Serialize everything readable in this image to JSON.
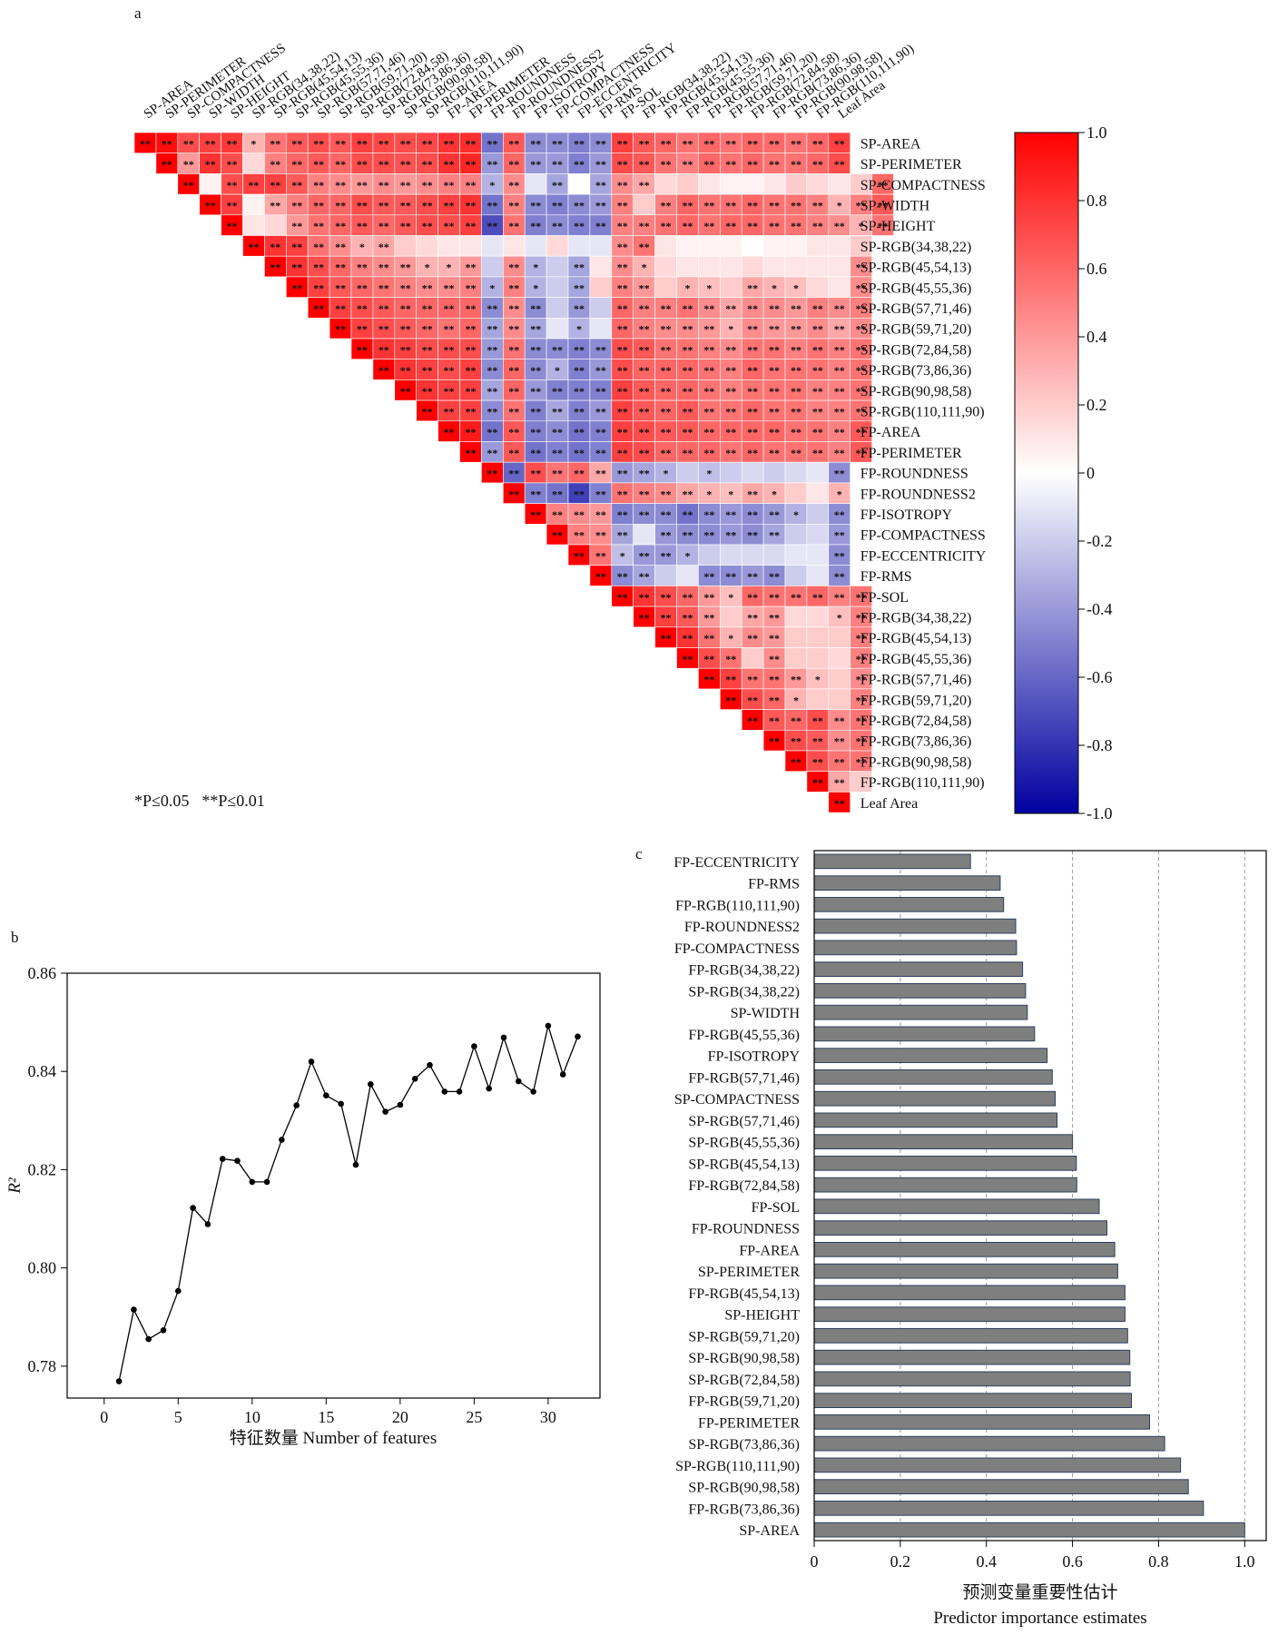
{
  "panel_labels": {
    "a": "a",
    "b": "b",
    "c": "c"
  },
  "significance_note": {
    "single": "*P≤0.05",
    "double": "**P≤0.01"
  },
  "chart_data": [
    {
      "type": "heatmap",
      "panel": "a",
      "variables": [
        "SP-AREA",
        "SP-PERIMETER",
        "SP-COMPACTNESS",
        "SP-WIDTH",
        "SP-HEIGHT",
        "SP-RGB(34,38,22)",
        "SP-RGB(45,54,13)",
        "SP-RGB(45,55,36)",
        "SP-RGB(57,71,46)",
        "SP-RGB(59,71,20)",
        "SP-RGB(72,84,58)",
        "SP-RGB(73,86,36)",
        "SP-RGB(90,98,58)",
        "SP-RGB(110,111,90)",
        "FP-AREA",
        "FP-PERIMETER",
        "FP-ROUNDNESS",
        "FP-ROUNDNESS2",
        "FP-ISOTROPY",
        "FP-COMPACTNESS",
        "FP-ECCENTRICITY",
        "FP-RMS",
        "FP-SOL",
        "FP-RGB(34,38,22)",
        "FP-RGB(45,54,13)",
        "FP-RGB(45,55,36)",
        "FP-RGB(57,71,46)",
        "FP-RGB(59,71,20)",
        "FP-RGB(72,84,58)",
        "FP-RGB(73,86,36)",
        "FP-RGB(90,98,58)",
        "FP-RGB(110,111,90)",
        "Leaf Area"
      ],
      "layout": "upper-triangle",
      "colorbar": {
        "min": -1.0,
        "max": 1.0,
        "ticks": [
          "1.0",
          "0.8",
          "0.6",
          "0.4",
          "0.2",
          "0",
          "-0.2",
          "-0.4",
          "-0.6",
          "-0.8",
          "-1.0"
        ],
        "colors": {
          "low": "#0000a0",
          "mid": "#ffffff",
          "high": "#ff0000"
        }
      },
      "significance_symbols": [
        "*",
        "**"
      ],
      "matrix_rows": [
        [
          1.0,
          0.95,
          0.7,
          0.75,
          0.78,
          0.3,
          0.55,
          0.65,
          0.7,
          0.65,
          0.75,
          0.72,
          0.7,
          0.72,
          0.8,
          0.82,
          -0.55,
          0.65,
          -0.45,
          -0.45,
          -0.5,
          -0.45,
          0.75,
          0.65,
          0.6,
          0.55,
          0.6,
          0.55,
          0.6,
          0.58,
          0.55,
          0.6,
          0.75
        ],
        [
          1.0,
          0.4,
          0.8,
          0.7,
          0.15,
          0.5,
          0.6,
          0.65,
          0.6,
          0.7,
          0.7,
          0.68,
          0.7,
          0.8,
          0.85,
          -0.4,
          0.6,
          -0.4,
          -0.4,
          -0.5,
          -0.4,
          0.7,
          0.65,
          0.55,
          0.5,
          0.6,
          0.55,
          0.6,
          0.55,
          0.55,
          0.6,
          0.7
        ],
        [
          1.0,
          0.05,
          0.7,
          0.75,
          0.75,
          0.65,
          0.5,
          0.45,
          0.4,
          0.45,
          0.4,
          0.45,
          0.5,
          0.5,
          -0.3,
          0.45,
          -0.1,
          -0.35,
          0.0,
          -0.35,
          0.45,
          0.35,
          0.15,
          0.2,
          0.1,
          0.05,
          0.05,
          0.1,
          0.2,
          0.15,
          0.1,
          0.2,
          0.6
        ],
        [
          1.0,
          0.75,
          0.05,
          0.35,
          0.5,
          0.6,
          0.6,
          0.7,
          0.65,
          0.65,
          0.7,
          0.75,
          0.8,
          -0.55,
          0.5,
          -0.45,
          -0.5,
          -0.45,
          -0.4,
          0.5,
          0.2,
          0.5,
          0.6,
          0.55,
          0.55,
          0.6,
          0.55,
          0.55,
          0.5,
          0.3,
          0.5,
          0.65
        ],
        [
          1.0,
          0.1,
          0.15,
          0.4,
          0.55,
          0.6,
          0.65,
          0.6,
          0.65,
          0.7,
          0.7,
          0.75,
          -0.7,
          0.55,
          -0.5,
          -0.45,
          -0.5,
          -0.5,
          0.5,
          0.5,
          0.55,
          0.6,
          0.55,
          0.6,
          0.6,
          0.55,
          0.55,
          0.5,
          0.45,
          0.3,
          0.55
        ],
        [
          1.0,
          0.8,
          0.75,
          0.55,
          0.45,
          0.3,
          0.35,
          0.2,
          0.15,
          0.1,
          0.1,
          -0.1,
          0.1,
          -0.1,
          0.15,
          -0.1,
          -0.1,
          0.45,
          0.55,
          0.1,
          0.05,
          0.05,
          0.05,
          0.0,
          0.05,
          0.05,
          0.1,
          0.1,
          0.2
        ],
        [
          1.0,
          0.8,
          0.7,
          0.6,
          0.5,
          0.45,
          0.4,
          0.3,
          0.3,
          0.4,
          -0.2,
          0.45,
          -0.3,
          -0.2,
          -0.35,
          0.1,
          0.45,
          0.3,
          0.15,
          0.1,
          0.1,
          0.1,
          0.15,
          0.1,
          0.1,
          0.1,
          0.1,
          0.45
        ],
        [
          1.0,
          0.75,
          0.65,
          0.6,
          0.55,
          0.5,
          0.45,
          0.45,
          0.5,
          -0.3,
          0.5,
          -0.3,
          -0.2,
          -0.35,
          0.2,
          0.5,
          0.4,
          0.2,
          0.3,
          0.25,
          0.2,
          0.35,
          0.3,
          0.25,
          0.15,
          0.1,
          0.45
        ],
        [
          1.0,
          0.75,
          0.7,
          0.65,
          0.6,
          0.6,
          0.6,
          0.6,
          -0.45,
          0.45,
          -0.45,
          -0.2,
          -0.4,
          -0.2,
          0.6,
          0.5,
          0.5,
          0.55,
          0.45,
          0.35,
          0.45,
          0.45,
          0.4,
          0.5,
          0.45,
          0.5
        ],
        [
          1.0,
          0.75,
          0.7,
          0.65,
          0.6,
          0.55,
          0.6,
          -0.35,
          0.45,
          -0.35,
          -0.1,
          -0.3,
          -0.1,
          0.6,
          0.5,
          0.45,
          0.45,
          0.4,
          0.3,
          0.45,
          0.4,
          0.4,
          0.45,
          0.35,
          0.45
        ],
        [
          1.0,
          0.8,
          0.75,
          0.7,
          0.7,
          0.7,
          -0.4,
          0.55,
          -0.45,
          -0.45,
          -0.5,
          -0.45,
          0.7,
          0.65,
          0.55,
          0.55,
          0.5,
          0.45,
          0.55,
          0.55,
          0.5,
          0.55,
          0.5,
          0.55
        ],
        [
          1.0,
          0.8,
          0.75,
          0.7,
          0.75,
          -0.45,
          0.6,
          -0.45,
          -0.3,
          -0.5,
          -0.4,
          0.7,
          0.6,
          0.6,
          0.6,
          0.55,
          0.5,
          0.6,
          0.55,
          0.55,
          0.55,
          0.5,
          0.55
        ],
        [
          1.0,
          0.8,
          0.75,
          0.75,
          -0.35,
          0.6,
          -0.4,
          -0.5,
          -0.5,
          -0.5,
          0.75,
          0.65,
          0.6,
          0.6,
          0.55,
          0.5,
          0.55,
          0.55,
          0.55,
          0.5,
          0.5,
          0.55
        ],
        [
          1.0,
          0.75,
          0.75,
          -0.45,
          0.55,
          -0.5,
          -0.35,
          -0.5,
          -0.4,
          0.75,
          0.65,
          0.6,
          0.65,
          0.55,
          0.55,
          0.6,
          0.55,
          0.55,
          0.5,
          0.5,
          0.55
        ],
        [
          1.0,
          0.9,
          -0.55,
          0.65,
          -0.5,
          -0.45,
          -0.55,
          -0.5,
          0.75,
          0.7,
          0.65,
          0.65,
          0.6,
          0.6,
          0.6,
          0.6,
          0.55,
          0.55,
          0.5,
          0.65
        ],
        [
          1.0,
          -0.4,
          0.65,
          -0.55,
          -0.5,
          -0.55,
          -0.5,
          0.75,
          0.7,
          0.6,
          0.6,
          0.6,
          0.55,
          0.6,
          0.55,
          0.55,
          0.55,
          0.5,
          0.65
        ],
        [
          1.0,
          -0.6,
          0.7,
          0.55,
          0.6,
          0.35,
          -0.4,
          -0.35,
          -0.3,
          -0.2,
          -0.25,
          -0.2,
          -0.15,
          -0.2,
          -0.15,
          -0.1,
          -0.45
        ],
        [
          1.0,
          -0.5,
          -0.55,
          -0.75,
          -0.5,
          0.55,
          0.5,
          0.45,
          0.35,
          0.3,
          0.25,
          0.35,
          0.3,
          0.2,
          0.1,
          0.3
        ],
        [
          1.0,
          0.5,
          0.45,
          0.4,
          -0.5,
          -0.45,
          -0.45,
          -0.55,
          -0.45,
          -0.4,
          -0.45,
          -0.4,
          -0.3,
          -0.2,
          -0.45
        ],
        [
          1.0,
          0.5,
          0.45,
          -0.35,
          -0.1,
          -0.4,
          -0.45,
          -0.45,
          -0.4,
          -0.45,
          -0.35,
          -0.2,
          -0.15,
          -0.4
        ],
        [
          1.0,
          0.55,
          -0.25,
          -0.4,
          -0.4,
          -0.3,
          -0.2,
          -0.15,
          -0.15,
          -0.15,
          -0.1,
          -0.1,
          -0.45
        ],
        [
          1.0,
          -0.45,
          -0.35,
          -0.2,
          -0.1,
          -0.45,
          -0.45,
          -0.4,
          -0.45,
          -0.2,
          -0.1,
          -0.45
        ],
        [
          1.0,
          0.8,
          0.7,
          0.6,
          0.4,
          0.25,
          0.6,
          0.55,
          0.55,
          0.6,
          0.5,
          0.55
        ],
        [
          1.0,
          0.75,
          0.65,
          0.4,
          0.2,
          0.35,
          0.4,
          0.15,
          0.15,
          0.25,
          0.5
        ],
        [
          1.0,
          0.8,
          0.55,
          0.3,
          0.45,
          0.4,
          0.2,
          0.2,
          0.2,
          0.5
        ],
        [
          1.0,
          0.7,
          0.55,
          0.2,
          0.45,
          0.2,
          0.2,
          0.15,
          0.5
        ],
        [
          1.0,
          0.75,
          0.55,
          0.55,
          0.4,
          0.25,
          0.2,
          0.45
        ],
        [
          1.0,
          0.7,
          0.6,
          0.3,
          0.2,
          0.2,
          0.5
        ],
        [
          1.0,
          0.65,
          0.6,
          0.7,
          0.45,
          0.55
        ],
        [
          1.0,
          0.7,
          0.65,
          0.45,
          0.55
        ],
        [
          1.0,
          0.7,
          0.55,
          0.55
        ],
        [
          1.0,
          0.35,
          0.2
        ],
        [
          1.0
        ]
      ]
    },
    {
      "type": "line",
      "panel": "b",
      "xlabel": "特征数量 Number of features",
      "ylabel": "R²",
      "xlim": [
        -2.5,
        33.5
      ],
      "ylim": [
        0.7735,
        0.86
      ],
      "xticks": [
        0,
        5,
        10,
        15,
        20,
        25,
        30
      ],
      "yticks": [
        0.78,
        0.8,
        0.82,
        0.84,
        0.86
      ],
      "x": [
        1,
        2,
        3,
        4,
        5,
        6,
        7,
        8,
        9,
        10,
        11,
        12,
        13,
        14,
        15,
        16,
        17,
        18,
        19,
        20,
        21,
        22,
        23,
        24,
        25,
        26,
        27,
        28,
        29,
        30,
        31,
        32
      ],
      "y": [
        0.7769,
        0.7915,
        0.7855,
        0.7873,
        0.7953,
        0.8122,
        0.8089,
        0.8222,
        0.8218,
        0.8175,
        0.8175,
        0.8261,
        0.8331,
        0.842,
        0.8351,
        0.8334,
        0.821,
        0.8374,
        0.8318,
        0.8332,
        0.8385,
        0.8413,
        0.8359,
        0.8359,
        0.8451,
        0.8365,
        0.8469,
        0.838,
        0.8359,
        0.8493,
        0.8394,
        0.8471
      ]
    },
    {
      "type": "bar",
      "panel": "c",
      "orientation": "horizontal",
      "xlabel_zh": "预测变量重要性估计",
      "xlabel_en": "Predictor importance estimates",
      "xlim": [
        0,
        1.05
      ],
      "xticks": [
        "0",
        "0.2",
        "0.4",
        "0.6",
        "0.8",
        "1.0"
      ],
      "bar_color": "#7f7f7f",
      "categories": [
        "FP-ECCENTRICITY",
        "FP-RMS",
        "FP-RGB(110,111,90)",
        "FP-ROUNDNESS2",
        "FP-COMPACTNESS",
        "FP-RGB(34,38,22)",
        "SP-RGB(34,38,22)",
        "SP-WIDTH",
        "FP-RGB(45,55,36)",
        "FP-ISOTROPY",
        "FP-RGB(57,71,46)",
        "SP-COMPACTNESS",
        "SP-RGB(57,71,46)",
        "SP-RGB(45,55,36)",
        "SP-RGB(45,54,13)",
        "FP-RGB(72,84,58)",
        "FP-SOL",
        "FP-ROUNDNESS",
        "FP-AREA",
        "SP-PERIMETER",
        "FP-RGB(45,54,13)",
        "SP-HEIGHT",
        "SP-RGB(59,71,20)",
        "SP-RGB(90,98,58)",
        "SP-RGB(72,84,58)",
        "FP-RGB(59,71,20)",
        "FP-PERIMETER",
        "SP-RGB(73,86,36)",
        "SP-RGB(110,111,90)",
        "SP-RGB(90,98,58)",
        "FP-RGB(73,86,36)",
        "SP-AREA"
      ],
      "values": [
        0.363,
        0.432,
        0.44,
        0.468,
        0.47,
        0.484,
        0.491,
        0.495,
        0.512,
        0.541,
        0.553,
        0.56,
        0.564,
        0.6,
        0.609,
        0.61,
        0.662,
        0.68,
        0.698,
        0.705,
        0.722,
        0.722,
        0.728,
        0.733,
        0.734,
        0.737,
        0.779,
        0.814,
        0.851,
        0.869,
        0.904,
        1.0
      ]
    }
  ]
}
